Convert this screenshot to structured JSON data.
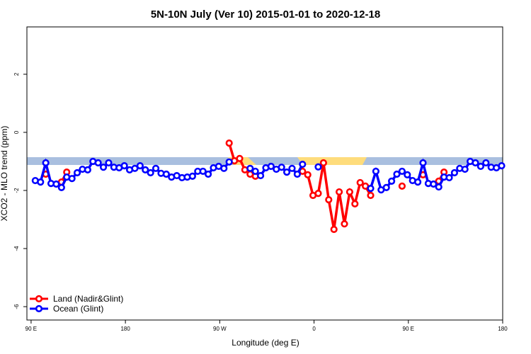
{
  "chart_data": {
    "type": "line",
    "title": "5N-10N July (Ver 10)   2015-01-01 to 2020-12-18",
    "x_label": "Longitude (deg E)",
    "y_label": "XCO2 - MLO trend (ppm)",
    "xlim": [
      86,
      540
    ],
    "ylim": [
      -6.46,
      3.63
    ],
    "xticks": [
      {
        "value": 90,
        "label": "90 E"
      },
      180,
      {
        "value": 270,
        "label": "90 W"
      },
      {
        "value": 360,
        "label": "0"
      },
      {
        "value": 450,
        "label": "90 E"
      },
      {
        "value": 540,
        "label": "180"
      }
    ],
    "yticks": [
      -6,
      -4,
      -2,
      0,
      2
    ],
    "legend_position": "bottom-left",
    "x": [
      94,
      99,
      104,
      109,
      114,
      119,
      124,
      129,
      134,
      139,
      144,
      149,
      154,
      159,
      164,
      169,
      174,
      179,
      184,
      189,
      194,
      199,
      204,
      209,
      214,
      219,
      224,
      229,
      234,
      239,
      244,
      249,
      254,
      259,
      264,
      269,
      274,
      279,
      284,
      289,
      294,
      299,
      304,
      309,
      314,
      319,
      324,
      329,
      334,
      339,
      344,
      349,
      354,
      359,
      364,
      369,
      374,
      379,
      384,
      389,
      394,
      399,
      404,
      409,
      414,
      419,
      424,
      429,
      434,
      439,
      444,
      449,
      454,
      459,
      464,
      469,
      474,
      479,
      484,
      489,
      494,
      499,
      504,
      509,
      514,
      519,
      524,
      529,
      534,
      539
    ],
    "series": [
      {
        "name": "Land (Nadir&Glint)",
        "color": "#ff0000",
        "values": [
          null,
          null,
          -1.44,
          null,
          null,
          -1.71,
          -1.37,
          null,
          null,
          null,
          null,
          null,
          null,
          null,
          null,
          null,
          null,
          null,
          null,
          null,
          null,
          null,
          null,
          null,
          null,
          null,
          null,
          null,
          null,
          null,
          null,
          null,
          null,
          null,
          null,
          null,
          null,
          -0.37,
          -0.98,
          -0.9,
          -1.29,
          -1.44,
          -1.51,
          null,
          null,
          null,
          null,
          null,
          null,
          null,
          null,
          -1.34,
          -1.46,
          -2.17,
          -2.1,
          -1.05,
          -2.32,
          -3.34,
          -2.05,
          -3.15,
          -2.05,
          -2.46,
          -1.73,
          -1.85,
          -2.17,
          null,
          null,
          null,
          null,
          null,
          -1.85,
          null,
          null,
          null,
          -1.46,
          null,
          null,
          -1.68,
          -1.37,
          null,
          null,
          null,
          null,
          null,
          null,
          null,
          null,
          null,
          null,
          null
        ]
      },
      {
        "name": "Ocean (Glint)",
        "color": "#0000ff",
        "values": [
          -1.66,
          -1.71,
          -1.05,
          -1.76,
          -1.78,
          -1.9,
          -1.54,
          -1.59,
          -1.39,
          -1.27,
          -1.29,
          -1.0,
          -1.05,
          -1.2,
          -1.05,
          -1.2,
          -1.22,
          -1.15,
          -1.29,
          -1.24,
          -1.15,
          -1.29,
          -1.39,
          -1.24,
          -1.41,
          -1.44,
          -1.54,
          -1.49,
          -1.56,
          -1.54,
          -1.51,
          -1.34,
          -1.34,
          -1.44,
          -1.22,
          -1.17,
          -1.24,
          -1.02,
          null,
          null,
          null,
          -1.24,
          -1.34,
          -1.49,
          -1.22,
          -1.17,
          -1.27,
          -1.2,
          -1.37,
          -1.24,
          -1.44,
          -1.1,
          null,
          null,
          -1.19,
          null,
          null,
          null,
          null,
          null,
          null,
          null,
          null,
          null,
          -1.93,
          -1.34,
          -1.98,
          -1.9,
          -1.68,
          -1.44,
          -1.34,
          -1.46,
          -1.66,
          -1.71,
          -1.05,
          -1.76,
          -1.78,
          -1.88,
          -1.54,
          -1.56,
          -1.39,
          -1.24,
          -1.27,
          -1.0,
          -1.05,
          -1.17,
          -1.05,
          -1.2,
          -1.22,
          -1.15
        ]
      }
    ]
  }
}
